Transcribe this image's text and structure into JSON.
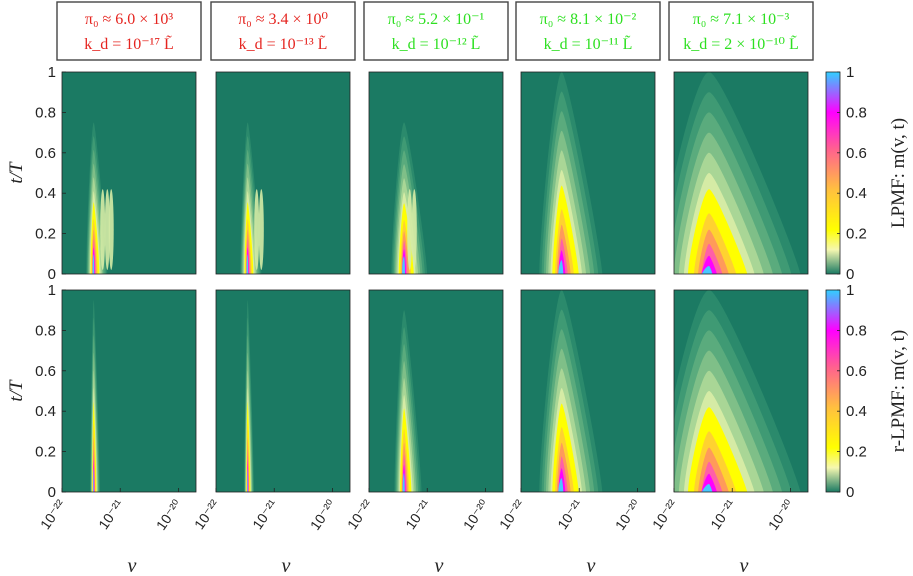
{
  "figure": {
    "colors": {
      "background": "#1b7a63",
      "red": "#e5241f",
      "green": "#2ee021",
      "box": "#444444"
    },
    "headers": [
      {
        "line1": "π₀ ≈ 6.0 × 10³",
        "line2": "k_d = 10⁻¹⁷ L̃",
        "color": "red"
      },
      {
        "line1": "π₀ ≈ 3.4 × 10⁰",
        "line2": "k_d = 10⁻¹³ L̃",
        "color": "red"
      },
      {
        "line1": "π₀ ≈ 5.2 × 10⁻¹",
        "line2": "k_d = 10⁻¹² L̃",
        "color": "green"
      },
      {
        "line1": "π₀ ≈ 8.1 × 10⁻²",
        "line2": "k_d = 10⁻¹¹ L̃",
        "color": "green"
      },
      {
        "line1": "π₀ ≈ 7.1 × 10⁻³",
        "line2": "k_d = 2 × 10⁻¹⁰ L̃",
        "color": "green"
      }
    ],
    "ylabel": "t/T",
    "xlabel": "v",
    "row_labels": [
      "LPMF: m(v, t)",
      "r-LPMF: m(v, t)"
    ]
  },
  "chart_data": [
    {
      "type": "heatmap",
      "row": "LPMF",
      "x_scale": "log",
      "xlim": [
        1e-22,
        2e-20
      ],
      "x_ticks": [
        "10⁻²²",
        "10⁻²¹",
        "10⁻²⁰"
      ],
      "ylim": [
        0,
        1
      ],
      "y_ticks": [
        "0",
        "0.2",
        "0.4",
        "0.6",
        "0.8",
        "1"
      ],
      "colorbar": {
        "range": [
          0,
          1
        ],
        "ticks": [
          "0",
          "0.2",
          "0.4",
          "0.6",
          "0.8",
          "1"
        ]
      },
      "panels": [
        {
          "peak_v": 3.5e-22,
          "peak_t": 0.07,
          "extent_t": 0.75,
          "extent_v": 6e-22,
          "side_ridges": [
            5e-22,
            6e-22,
            7e-22
          ]
        },
        {
          "peak_v": 3.5e-22,
          "peak_t": 0.07,
          "extent_t": 0.75,
          "extent_v": 6e-22,
          "side_ridges": [
            5e-22,
            6e-22
          ]
        },
        {
          "peak_v": 4e-22,
          "peak_t": 0.06,
          "extent_t": 0.75,
          "extent_v": 1e-21,
          "side_ridges": [
            5e-22,
            6e-22
          ]
        },
        {
          "peak_v": 5e-22,
          "peak_t": 0.03,
          "extent_t": 1.0,
          "extent_v": 2.5e-21,
          "side_ridges": []
        },
        {
          "peak_v": 4e-22,
          "peak_t": 0.0,
          "extent_t": 1.0,
          "extent_v": 1.5e-20,
          "side_ridges": []
        }
      ]
    },
    {
      "type": "heatmap",
      "row": "r-LPMF",
      "x_scale": "log",
      "xlim": [
        1e-22,
        2e-20
      ],
      "x_ticks": [
        "10⁻²²",
        "10⁻²¹",
        "10⁻²⁰"
      ],
      "ylim": [
        0,
        1
      ],
      "y_ticks": [
        "0",
        "0.2",
        "0.4",
        "0.6",
        "0.8",
        "1"
      ],
      "colorbar": {
        "range": [
          0,
          1
        ],
        "ticks": [
          "0",
          "0.2",
          "0.4",
          "0.6",
          "0.8",
          "1"
        ]
      },
      "panels": [
        {
          "peak_v": 3.5e-22,
          "peak_t": 0.08,
          "extent_t": 0.95,
          "extent_v": 4.5e-22,
          "side_ridges": []
        },
        {
          "peak_v": 3.5e-22,
          "peak_t": 0.08,
          "extent_t": 0.95,
          "extent_v": 4.5e-22,
          "side_ridges": []
        },
        {
          "peak_v": 4e-22,
          "peak_t": 0.06,
          "extent_t": 0.9,
          "extent_v": 8e-22,
          "side_ridges": []
        },
        {
          "peak_v": 5e-22,
          "peak_t": 0.03,
          "extent_t": 1.0,
          "extent_v": 2.5e-21,
          "side_ridges": []
        },
        {
          "peak_v": 4e-22,
          "peak_t": 0.0,
          "extent_t": 1.0,
          "extent_v": 1.5e-20,
          "side_ridges": []
        }
      ]
    }
  ]
}
